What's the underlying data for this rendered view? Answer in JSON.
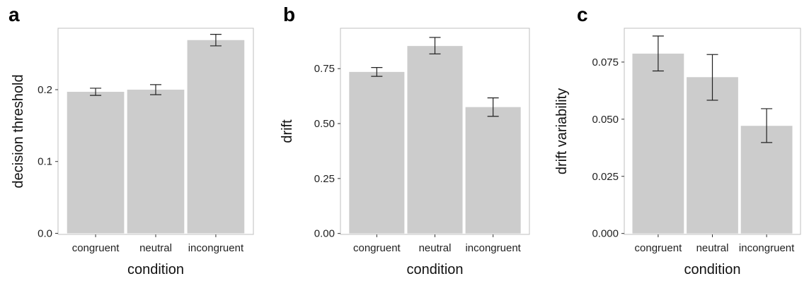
{
  "chart_data": [
    {
      "type": "bar",
      "panel": "a",
      "categories": [
        "congruent",
        "neutral",
        "incongruent"
      ],
      "values": [
        0.197,
        0.2,
        0.269
      ],
      "error_low": [
        0.192,
        0.193,
        0.261
      ],
      "error_high": [
        0.202,
        0.207,
        0.277
      ],
      "xlabel": "condition",
      "ylabel": "decision threshold",
      "ylim": [
        -0.0015,
        0.2855
      ],
      "yticks": [
        0.0,
        0.1,
        0.2
      ],
      "ytick_labels": [
        "0.0",
        "0.1",
        "0.2"
      ],
      "grid": false
    },
    {
      "type": "bar",
      "panel": "b",
      "categories": [
        "congruent",
        "neutral",
        "incongruent"
      ],
      "values": [
        0.735,
        0.853,
        0.575
      ],
      "error_low": [
        0.715,
        0.817,
        0.533
      ],
      "error_high": [
        0.755,
        0.892,
        0.617
      ],
      "xlabel": "condition",
      "ylabel": "drift",
      "ylim": [
        -0.0043,
        0.9338
      ],
      "yticks": [
        0.0,
        0.25,
        0.5,
        0.75
      ],
      "ytick_labels": [
        "0.00",
        "0.25",
        "0.50",
        "0.75"
      ],
      "grid": false
    },
    {
      "type": "bar",
      "panel": "c",
      "categories": [
        "congruent",
        "neutral",
        "incongruent"
      ],
      "values": [
        0.0787,
        0.0684,
        0.0471
      ],
      "error_low": [
        0.0711,
        0.0583,
        0.0398
      ],
      "error_high": [
        0.0864,
        0.0783,
        0.0546
      ],
      "xlabel": "condition",
      "ylabel": "drift variability",
      "ylim": [
        -0.00041,
        0.0898
      ],
      "yticks": [
        0.0,
        0.025,
        0.05,
        0.075
      ],
      "ytick_labels": [
        "0.000",
        "0.025",
        "0.050",
        "0.075"
      ],
      "grid": false
    }
  ],
  "colors": {
    "bar": "#cccccc",
    "panel_border": "#bfbfbf",
    "error_bar": "#222222",
    "tick": "#333333"
  }
}
